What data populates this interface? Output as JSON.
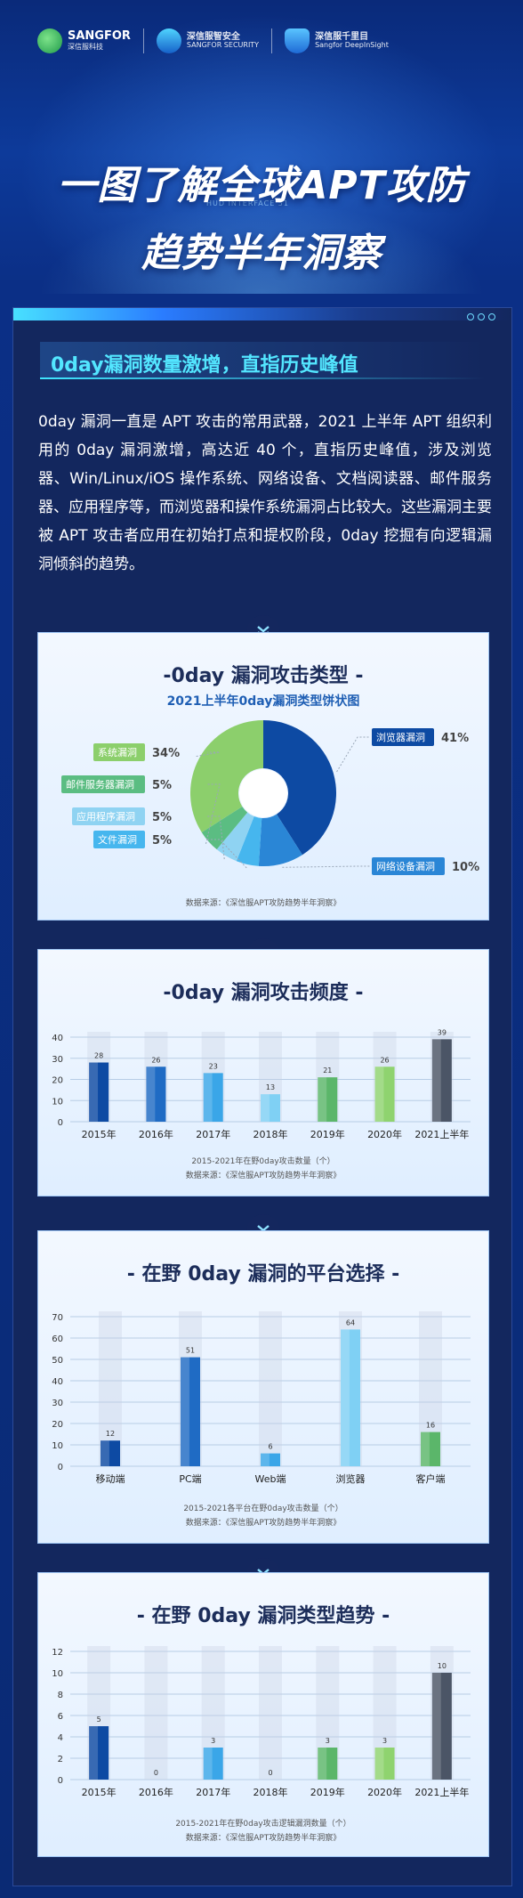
{
  "header": {
    "logo1_en": "SANGFOR",
    "logo1_cn": "深信服科技",
    "logo2_cn": "深信服智安全",
    "logo2_en": "SANGFOR SECURITY",
    "logo3_cn": "深信服千里目",
    "logo3_en": "Sangfor DeepInSight",
    "hud_text": "HUD INTERFACE 51",
    "title_line1": "一图了解全球APT攻防",
    "title_line2": "趋势半年洞察"
  },
  "intro": {
    "headline": "0day漏洞数量激增，直指历史峰值",
    "paragraph": "0day 漏洞一直是 APT 攻击的常用武器，2021 上半年 APT 组织利用的 0day 漏洞激增，高达近 40 个，直指历史峰值，涉及浏览器、Win/Linux/iOS 操作系统、网络设备、文档阅读器、邮件服务器、应用程序等，而浏览器和操作系统漏洞占比较大。这些漏洞主要被 APT 攻击者应用在初始打点和提权阶段，0day 挖掘有向逻辑漏洞倾斜的趋势。"
  },
  "colors": {
    "green": "#7cc86a",
    "green2": "#5bb66a",
    "teal": "#69c6e8",
    "lightblue": "#4fb6f0",
    "blue": "#1f6bc4",
    "darkblue": "#0d3f8f",
    "slate": "#4b5566"
  },
  "panels": {
    "pie_title": "-0day 漏洞攻击类型 -",
    "pie_subtitle": "2021上半年0day漏洞类型饼状图",
    "pie_source": "数据来源：《深信服APT攻防趋势半年洞察》",
    "freq_title": "-0day 漏洞攻击频度 -",
    "freq_caption": "2015-2021年在野0day攻击数量（个）",
    "freq_source": "数据来源：《深信服APT攻防趋势半年洞察》",
    "plat_title": "- 在野 0day 漏洞的平台选择 -",
    "plat_caption": "2015-2021各平台在野0day攻击数量（个）",
    "plat_source": "数据来源：《深信服APT攻防趋势半年洞察》",
    "trend_title": "- 在野 0day 漏洞类型趋势 -",
    "trend_caption": "2015-2021年在野0day攻击逻辑漏洞数量（个）",
    "trend_source": "数据来源：《深信服APT攻防趋势半年洞察》"
  },
  "chart_data": [
    {
      "type": "pie",
      "title": "2021上半年0day漏洞类型饼状图",
      "slices": [
        {
          "label": "浏览器漏洞",
          "value": 41,
          "pct": "41%",
          "color": "#0d4aa3"
        },
        {
          "label": "网络设备漏洞",
          "value": 10,
          "pct": "10%",
          "color": "#2a86d6"
        },
        {
          "label": "文件漏洞",
          "value": 5,
          "pct": "5%",
          "color": "#46b6ee"
        },
        {
          "label": "应用程序漏洞",
          "value": 5,
          "pct": "5%",
          "color": "#8fd3f2"
        },
        {
          "label": "邮件服务器漏洞",
          "value": 5,
          "pct": "5%",
          "color": "#5bbd82"
        },
        {
          "label": "系统漏洞",
          "value": 34,
          "pct": "34%",
          "color": "#8ccf6c"
        }
      ]
    },
    {
      "type": "bar",
      "title": "-0day 漏洞攻击频度 -",
      "categories": [
        "2015年",
        "2016年",
        "2017年",
        "2018年",
        "2019年",
        "2020年",
        "2021上半年"
      ],
      "values": [
        28,
        26,
        23,
        13,
        21,
        26,
        39
      ],
      "colors": [
        "#0d4aa3",
        "#1f6bc4",
        "#3aa6e8",
        "#7fd0f4",
        "#5bb66a",
        "#8fd36f",
        "#4b5566"
      ],
      "yticks": [
        0,
        10,
        20,
        30,
        40
      ],
      "ylim": [
        0,
        40
      ]
    },
    {
      "type": "bar",
      "title": "- 在野 0day 漏洞的平台选择 -",
      "categories": [
        "移动端",
        "PC端",
        "Web端",
        "浏览器",
        "客户端"
      ],
      "values": [
        12,
        51,
        6,
        64,
        16
      ],
      "colors": [
        "#0d4aa3",
        "#1f6bc4",
        "#3aa6e8",
        "#7fd0f4",
        "#5bb66a"
      ],
      "yticks": [
        0,
        10,
        20,
        30,
        40,
        50,
        60,
        70
      ],
      "ylim": [
        0,
        70
      ]
    },
    {
      "type": "bar",
      "title": "- 在野 0day 漏洞类型趋势 -",
      "categories": [
        "2015年",
        "2016年",
        "2017年",
        "2018年",
        "2019年",
        "2020年",
        "2021上半年"
      ],
      "values": [
        5,
        0,
        3,
        0,
        3,
        3,
        10
      ],
      "colors": [
        "#0d4aa3",
        "#1f6bc4",
        "#3aa6e8",
        "#7fd0f4",
        "#5bb66a",
        "#8fd36f",
        "#4b5566"
      ],
      "yticks": [
        0,
        2,
        4,
        6,
        8,
        10,
        12
      ],
      "ylim": [
        0,
        12
      ]
    }
  ]
}
